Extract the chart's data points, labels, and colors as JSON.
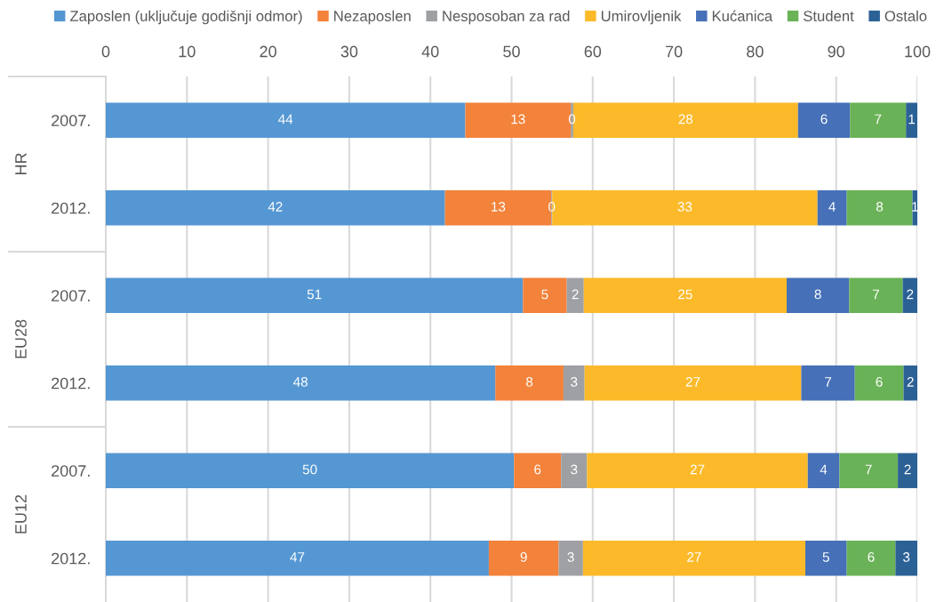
{
  "chart_data": {
    "type": "bar",
    "orientation": "horizontal",
    "stacked": true,
    "categories": [
      "2007.",
      "2012.",
      "2007.",
      "2012.",
      "2007.",
      "2012."
    ],
    "annotations": [
      "HR",
      "EU28",
      "EU12"
    ],
    "series": [
      {
        "name": "Zaposlen (uključuje godišnji odmor)",
        "color": "#5597d3",
        "values": [
          44.3,
          41.8,
          51.4,
          48.0,
          50.3,
          47.2
        ],
        "value_labels": [
          "44",
          "42",
          "51",
          "48",
          "50",
          "47"
        ]
      },
      {
        "name": "Nezaposlen",
        "color": "#f3823a",
        "values": [
          13.0,
          13.1,
          5.4,
          8.4,
          5.8,
          8.6
        ],
        "value_labels": [
          "13",
          "13",
          "5",
          "8",
          "6",
          "9"
        ]
      },
      {
        "name": "Nesposoban za rad",
        "color": "#9ea0a4",
        "values": [
          0.3,
          0.1,
          2.1,
          2.6,
          3.2,
          3.0
        ],
        "value_labels": [
          "0",
          "0",
          "2",
          "3",
          "3",
          "3"
        ]
      },
      {
        "name": "Umirovljenik",
        "color": "#fcba2a",
        "values": [
          27.7,
          32.7,
          25.0,
          26.7,
          27.2,
          27.4
        ],
        "value_labels": [
          "28",
          "33",
          "25",
          "27",
          "27",
          "27"
        ]
      },
      {
        "name": "Kućanica",
        "color": "#4670b8",
        "values": [
          6.4,
          3.6,
          7.7,
          6.6,
          3.9,
          5.1
        ],
        "value_labels": [
          "6",
          "4",
          "8",
          "7",
          "4",
          "5"
        ]
      },
      {
        "name": "Student",
        "color": "#6ab257",
        "values": [
          6.9,
          8.1,
          6.6,
          6.0,
          7.2,
          6.0
        ],
        "value_labels": [
          "7",
          "8",
          "7",
          "6",
          "7",
          "6"
        ]
      },
      {
        "name": "Ostalo",
        "color": "#2b6195",
        "values": [
          1.4,
          0.6,
          1.8,
          1.7,
          2.4,
          2.7
        ],
        "value_labels": [
          "1",
          "1",
          "2",
          "2",
          "2",
          "3"
        ]
      }
    ],
    "xlim": [
      0,
      100
    ],
    "xticks": [
      0,
      10,
      20,
      30,
      40,
      50,
      60,
      70,
      80,
      90,
      100
    ],
    "grid": "x",
    "legend": "top"
  }
}
